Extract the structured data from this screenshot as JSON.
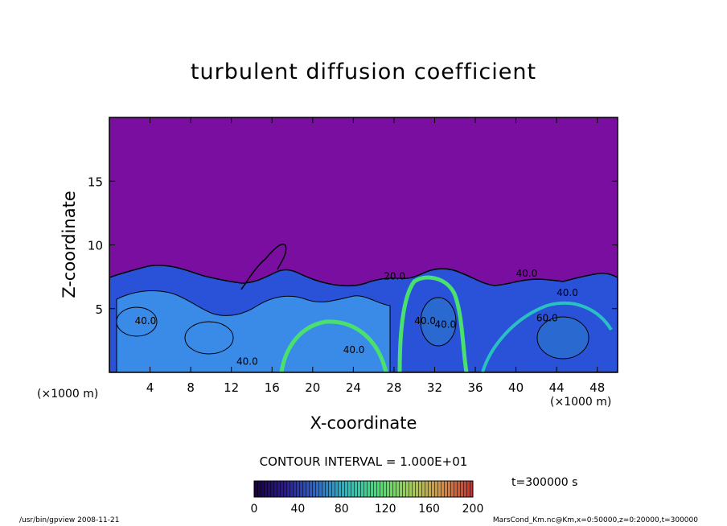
{
  "title": "turbulent diffusion coefficient",
  "chart_data": {
    "type": "heatmap",
    "title": "turbulent diffusion coefficient",
    "xlabel": "X-coordinate",
    "ylabel": "Z-coordinate",
    "x_unit": "(×1000 m)",
    "y_unit": "(×1000 m)",
    "xlim": [
      0,
      50
    ],
    "ylim": [
      0,
      20
    ],
    "x_ticks": [
      4,
      8,
      12,
      16,
      20,
      24,
      28,
      32,
      36,
      40,
      44,
      48
    ],
    "y_ticks": [
      5,
      10,
      15
    ],
    "contour_interval_text": "CONTOUR INTERVAL = 1.000E+01",
    "contour_labels": [
      "40.0",
      "40.0",
      "20.0",
      "40.0",
      "40.0",
      "40.0",
      "40.0",
      "40.0",
      "60.0"
    ],
    "colorbar": {
      "range": [
        0,
        200
      ],
      "ticks": [
        0,
        40,
        80,
        120,
        160,
        200
      ],
      "colors": [
        "#1a0040",
        "#2a1a9a",
        "#2a6ad0",
        "#29c0c0",
        "#49e070",
        "#a0d050",
        "#d89040",
        "#c83030"
      ]
    },
    "background_value_color": "#7a0ea0",
    "time_label": "t=300000 s"
  },
  "footer": {
    "left": "/usr/bin/gpview   2008-11-21",
    "right": "MarsCond_Km.nc@Km,x=0:50000,z=0:20000,t=300000"
  }
}
